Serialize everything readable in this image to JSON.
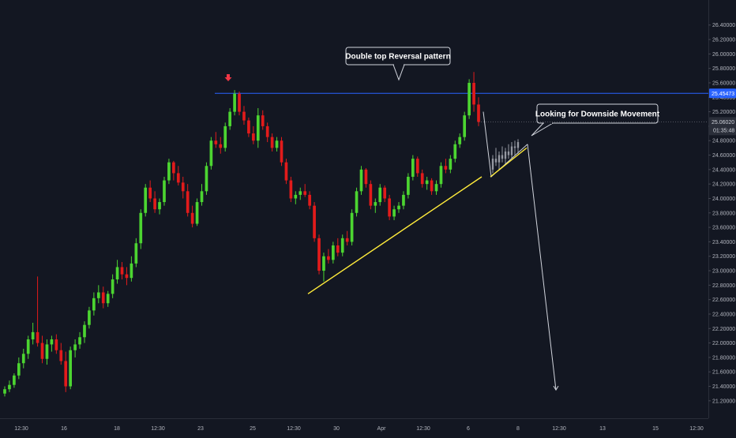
{
  "chart_data": {
    "type": "candlestick",
    "title": "",
    "xlabel": "",
    "ylabel": "",
    "ylim": [
      21.1,
      26.55
    ],
    "x_tick_labels": [
      "12:30",
      "16",
      "18",
      "12:30",
      "23",
      "25",
      "12:30",
      "30",
      "Apr",
      "12:30",
      "6",
      "8",
      "12:30",
      "13",
      "15",
      "12:30"
    ],
    "y_tick_labels": [
      "26.40000",
      "26.20000",
      "26.00000",
      "25.80000",
      "25.60000",
      "25.40000",
      "25.20000",
      "25.00000",
      "24.80000",
      "24.60000",
      "24.40000",
      "24.20000",
      "24.00000",
      "23.80000",
      "23.60000",
      "23.40000",
      "23.20000",
      "23.00000",
      "22.80000",
      "22.60000",
      "22.40000",
      "22.20000",
      "22.00000",
      "21.80000",
      "21.60000",
      "21.40000",
      "21.20000"
    ],
    "horizontal_level": {
      "value": 25.45473,
      "label": "25.45473"
    },
    "last_price": {
      "value": 25.0602,
      "label": "25.06020",
      "countdown": "01:35:48"
    },
    "colors": {
      "background": "#131722",
      "up": "#4CD531",
      "down": "#E21B1B",
      "projection": "#9598A1",
      "level_line": "#2962FF",
      "trendline": "#FFEB3B",
      "axis_text": "#B2B5BE"
    },
    "candles": [
      [
        21.3,
        21.4,
        21.26,
        21.36
      ],
      [
        21.36,
        21.48,
        21.32,
        21.42
      ],
      [
        21.42,
        21.58,
        21.38,
        21.55
      ],
      [
        21.55,
        21.8,
        21.5,
        21.72
      ],
      [
        21.72,
        21.92,
        21.65,
        21.85
      ],
      [
        21.85,
        22.1,
        21.78,
        22.05
      ],
      [
        22.05,
        22.28,
        21.98,
        22.15
      ],
      [
        22.15,
        22.92,
        21.95,
        22.0
      ],
      [
        22.0,
        22.1,
        21.72,
        21.78
      ],
      [
        21.78,
        22.05,
        21.7,
        21.98
      ],
      [
        21.98,
        22.1,
        21.88,
        22.05
      ],
      [
        22.05,
        22.12,
        21.85,
        21.9
      ],
      [
        21.9,
        22.0,
        21.7,
        21.75
      ],
      [
        21.75,
        21.88,
        21.32,
        21.4
      ],
      [
        21.4,
        21.95,
        21.36,
        21.9
      ],
      [
        21.9,
        22.05,
        21.8,
        21.98
      ],
      [
        21.98,
        22.15,
        21.92,
        22.08
      ],
      [
        22.08,
        22.3,
        22.0,
        22.25
      ],
      [
        22.25,
        22.5,
        22.2,
        22.45
      ],
      [
        22.45,
        22.7,
        22.38,
        22.62
      ],
      [
        22.62,
        22.8,
        22.55,
        22.7
      ],
      [
        22.7,
        22.78,
        22.48,
        22.55
      ],
      [
        22.55,
        22.72,
        22.5,
        22.68
      ],
      [
        22.68,
        22.95,
        22.62,
        22.88
      ],
      [
        22.88,
        23.15,
        22.82,
        23.05
      ],
      [
        23.05,
        23.12,
        22.88,
        22.95
      ],
      [
        22.95,
        23.05,
        22.8,
        22.9
      ],
      [
        22.9,
        23.2,
        22.85,
        23.1
      ],
      [
        23.1,
        23.45,
        23.05,
        23.38
      ],
      [
        23.38,
        23.85,
        23.3,
        23.8
      ],
      [
        23.8,
        24.2,
        23.75,
        24.15
      ],
      [
        24.15,
        24.25,
        23.95,
        24.0
      ],
      [
        24.0,
        24.1,
        23.8,
        23.85
      ],
      [
        23.85,
        24.0,
        23.78,
        23.95
      ],
      [
        23.95,
        24.3,
        23.9,
        24.25
      ],
      [
        24.25,
        24.55,
        24.2,
        24.5
      ],
      [
        24.5,
        24.52,
        24.25,
        24.35
      ],
      [
        24.35,
        24.45,
        24.18,
        24.22
      ],
      [
        24.22,
        24.3,
        24.0,
        24.1
      ],
      [
        24.1,
        24.2,
        23.75,
        23.8
      ],
      [
        23.8,
        23.9,
        23.6,
        23.65
      ],
      [
        23.65,
        24.0,
        23.62,
        23.95
      ],
      [
        23.95,
        24.2,
        23.9,
        24.1
      ],
      [
        24.1,
        24.5,
        24.05,
        24.45
      ],
      [
        24.45,
        24.85,
        24.4,
        24.8
      ],
      [
        24.8,
        24.92,
        24.7,
        24.75
      ],
      [
        24.75,
        24.85,
        24.62,
        24.7
      ],
      [
        24.7,
        25.05,
        24.65,
        25.0
      ],
      [
        25.0,
        25.25,
        24.95,
        25.2
      ],
      [
        25.2,
        25.5,
        25.15,
        25.45
      ],
      [
        25.45,
        25.48,
        25.15,
        25.2
      ],
      [
        25.2,
        25.28,
        25.02,
        25.08
      ],
      [
        25.08,
        25.12,
        24.85,
        24.9
      ],
      [
        24.9,
        25.0,
        24.75,
        24.8
      ],
      [
        24.8,
        25.25,
        24.7,
        25.15
      ],
      [
        25.15,
        25.22,
        24.95,
        25.0
      ],
      [
        25.0,
        25.05,
        24.78,
        24.85
      ],
      [
        24.85,
        24.9,
        24.65,
        24.7
      ],
      [
        24.7,
        24.85,
        24.65,
        24.8
      ],
      [
        24.8,
        24.85,
        24.45,
        24.5
      ],
      [
        24.5,
        24.55,
        24.2,
        24.25
      ],
      [
        24.25,
        24.3,
        23.95,
        24.0
      ],
      [
        24.0,
        24.1,
        23.92,
        24.05
      ],
      [
        24.05,
        24.15,
        23.98,
        24.1
      ],
      [
        24.1,
        24.2,
        24.02,
        24.05
      ],
      [
        24.05,
        24.1,
        23.85,
        23.9
      ],
      [
        23.9,
        23.95,
        23.4,
        23.45
      ],
      [
        23.45,
        23.5,
        22.95,
        23.0
      ],
      [
        23.0,
        23.25,
        22.85,
        23.2
      ],
      [
        23.2,
        23.3,
        23.1,
        23.15
      ],
      [
        23.15,
        23.4,
        23.1,
        23.35
      ],
      [
        23.35,
        23.45,
        23.2,
        23.25
      ],
      [
        23.25,
        23.5,
        23.2,
        23.45
      ],
      [
        23.45,
        23.55,
        23.35,
        23.4
      ],
      [
        23.4,
        23.85,
        23.35,
        23.8
      ],
      [
        23.8,
        24.15,
        23.75,
        24.1
      ],
      [
        24.1,
        24.45,
        24.05,
        24.4
      ],
      [
        24.4,
        24.42,
        24.15,
        24.2
      ],
      [
        24.2,
        24.25,
        23.85,
        23.9
      ],
      [
        23.9,
        24.0,
        23.8,
        23.95
      ],
      [
        23.95,
        24.2,
        23.9,
        24.15
      ],
      [
        24.15,
        24.18,
        23.95,
        24.0
      ],
      [
        24.0,
        24.05,
        23.7,
        23.75
      ],
      [
        23.75,
        23.9,
        23.7,
        23.85
      ],
      [
        23.85,
        23.95,
        23.8,
        23.9
      ],
      [
        23.9,
        24.1,
        23.85,
        24.05
      ],
      [
        24.05,
        24.35,
        24.0,
        24.3
      ],
      [
        24.3,
        24.6,
        24.25,
        24.55
      ],
      [
        24.55,
        24.58,
        24.3,
        24.35
      ],
      [
        24.35,
        24.4,
        24.15,
        24.2
      ],
      [
        24.2,
        24.3,
        24.12,
        24.25
      ],
      [
        24.25,
        24.28,
        24.05,
        24.1
      ],
      [
        24.1,
        24.25,
        24.05,
        24.2
      ],
      [
        24.2,
        24.5,
        24.15,
        24.45
      ],
      [
        24.45,
        24.55,
        24.35,
        24.4
      ],
      [
        24.4,
        24.6,
        24.35,
        24.55
      ],
      [
        24.55,
        24.8,
        24.5,
        24.75
      ],
      [
        24.75,
        24.9,
        24.7,
        24.85
      ],
      [
        24.85,
        25.2,
        24.8,
        25.15
      ],
      [
        25.15,
        25.65,
        25.1,
        25.6
      ],
      [
        25.6,
        25.75,
        25.2,
        25.3
      ],
      [
        25.3,
        25.4,
        25.0,
        25.06
      ]
    ],
    "projection_candles": [
      [
        24.4,
        24.6,
        24.35,
        24.55
      ],
      [
        24.55,
        24.7,
        24.45,
        24.5
      ],
      [
        24.5,
        24.65,
        24.4,
        24.6
      ],
      [
        24.6,
        24.72,
        24.5,
        24.55
      ],
      [
        24.55,
        24.7,
        24.48,
        24.65
      ],
      [
        24.65,
        24.75,
        24.55,
        24.6
      ],
      [
        24.6,
        24.78,
        24.55,
        24.72
      ],
      [
        24.72,
        24.8,
        24.6,
        24.7
      ],
      [
        24.7,
        24.82,
        24.62,
        24.78
      ]
    ],
    "projection_path": [
      [
        25.2,
        24.3
      ],
      [
        24.3,
        24.75
      ],
      [
        24.75,
        21.35
      ]
    ],
    "trendlines": [
      {
        "from": [
          0,
          22.68
        ],
        "to": [
          1,
          24.3
        ]
      },
      {
        "from": [
          0,
          24.3
        ],
        "to": [
          1,
          24.7
        ]
      }
    ],
    "annotations": [
      {
        "text": "Double top Reversal pattern",
        "pointer": "down"
      },
      {
        "text": "Looking for Downside Movement",
        "pointer": "down-left"
      }
    ],
    "markers": [
      {
        "type": "down-arrow",
        "color": "#F23645"
      }
    ]
  }
}
